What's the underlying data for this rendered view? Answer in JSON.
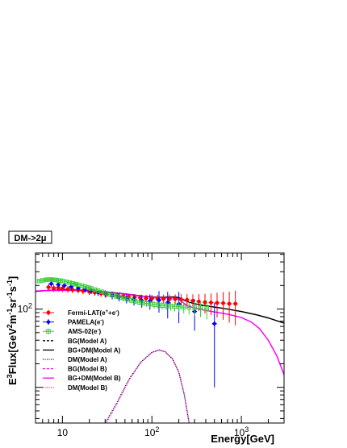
{
  "chart_data": {
    "type": "scatter",
    "title": "DM->2μ",
    "xlabel": "Energy[GeV]",
    "ylabel_parts": {
      "base": "E",
      "sup1": "3",
      "mid": "Flux[GeV",
      "sup2": "2",
      "m": "m",
      "sup3": "-1",
      "sr": "sr",
      "sup4": "-1",
      "s": "s",
      "sup5": "-1",
      "end": "]"
    },
    "x_scale": "log",
    "y_scale": "log",
    "xlim": [
      5,
      3000
    ],
    "ylim": [
      3.5,
      520
    ],
    "x_tick_labels": [
      {
        "value": 10,
        "base": "10",
        "exp": ""
      },
      {
        "value": 100,
        "base": "10",
        "exp": "2"
      },
      {
        "value": 1000,
        "base": "10",
        "exp": "3"
      }
    ],
    "y_tick_labels": [
      {
        "value": 100,
        "base": "10",
        "exp": "2"
      }
    ],
    "legend": {
      "position": "left",
      "entries": [
        {
          "text": "Fermi-LAT(e",
          "sup": "+",
          "text2": "+e",
          "sup2": "-",
          "text3": ")",
          "kind": "marker",
          "color": "#ff0000",
          "marker": "circle"
        },
        {
          "text": "PAMELA(e",
          "sup": "-",
          "text2": ")",
          "sup2": "",
          "text3": "",
          "kind": "marker",
          "color": "#0000ff",
          "marker": "diamond"
        },
        {
          "text": "AMS-02(e",
          "sup": "-",
          "text2": ")",
          "sup2": "",
          "text3": "",
          "kind": "marker",
          "color": "#33cc33",
          "marker": "square"
        },
        {
          "text": "BG(Model A)",
          "kind": "line",
          "color": "#000000",
          "dash": "3,2"
        },
        {
          "text": "BG+DM(Model A)",
          "kind": "line",
          "color": "#000000",
          "dash": ""
        },
        {
          "text": "DM(Model A)",
          "kind": "line",
          "color": "#000000",
          "dash": "1,1.5"
        },
        {
          "text": "BG(Model B)",
          "kind": "line",
          "color": "#ff00ff",
          "dash": "3,2"
        },
        {
          "text": "BG+DM(Model B)",
          "kind": "line",
          "color": "#ff00ff",
          "dash": ""
        },
        {
          "text": "DM(Model B)",
          "kind": "line",
          "color": "#ff00ff",
          "dash": "1,1.5"
        }
      ]
    },
    "series": [
      {
        "name": "Fermi-LAT(e+e)",
        "color": "#ff0000",
        "marker": "circle",
        "points": [
          [
            7,
            190,
            22
          ],
          [
            8,
            185,
            20
          ],
          [
            9,
            188,
            20
          ],
          [
            10,
            183,
            18
          ],
          [
            11.5,
            180,
            18
          ],
          [
            13,
            176,
            17
          ],
          [
            15,
            174,
            16
          ],
          [
            17,
            170,
            16
          ],
          [
            20,
            166,
            15
          ],
          [
            23,
            162,
            15
          ],
          [
            27,
            158,
            15
          ],
          [
            31,
            155,
            14
          ],
          [
            36,
            151,
            14
          ],
          [
            41,
            148,
            14
          ],
          [
            48,
            146,
            14
          ],
          [
            55,
            143,
            14
          ],
          [
            64,
            141,
            14
          ],
          [
            74,
            139,
            14
          ],
          [
            86,
            137,
            15
          ],
          [
            100,
            136,
            16
          ],
          [
            116,
            135,
            17
          ],
          [
            135,
            135,
            18
          ],
          [
            157,
            134,
            19
          ],
          [
            182,
            134,
            20
          ],
          [
            212,
            133,
            22
          ],
          [
            247,
            131,
            24
          ],
          [
            287,
            128,
            26
          ],
          [
            335,
            125,
            30
          ],
          [
            392,
            122,
            34
          ],
          [
            458,
            121,
            37
          ],
          [
            535,
            120,
            42
          ],
          [
            626,
            119,
            46
          ],
          [
            732,
            117,
            50
          ],
          [
            857,
            117,
            55
          ]
        ]
      },
      {
        "name": "PAMELA(e-)",
        "color": "#0000ff",
        "marker": "diamond",
        "points": [
          [
            7.5,
            210,
            20
          ],
          [
            9,
            205,
            20
          ],
          [
            10.5,
            200,
            18
          ],
          [
            12.5,
            192,
            17
          ],
          [
            15,
            185,
            17
          ],
          [
            18,
            178,
            16
          ],
          [
            21,
            171,
            16
          ],
          [
            25,
            163,
            16
          ],
          [
            30,
            157,
            17
          ],
          [
            36,
            150,
            17
          ],
          [
            43,
            143,
            18
          ],
          [
            52,
            137,
            19
          ],
          [
            63,
            132,
            21
          ],
          [
            77,
            128,
            24
          ],
          [
            95,
            126,
            28
          ],
          [
            120,
            130,
            40
          ],
          [
            150,
            121,
            45
          ],
          [
            200,
            116,
            50
          ],
          [
            300,
            93,
            40
          ],
          [
            500,
            65,
            55
          ]
        ]
      },
      {
        "name": "AMS-02(e-)",
        "color": "#33cc33",
        "marker": "square",
        "points": [
          [
            5.5,
            228,
            14
          ],
          [
            6,
            232,
            14
          ],
          [
            6.5,
            236,
            14
          ],
          [
            7,
            238,
            14
          ],
          [
            7.5,
            238,
            14
          ],
          [
            8,
            236,
            14
          ],
          [
            8.5,
            235,
            14
          ],
          [
            9,
            232,
            13
          ],
          [
            9.5,
            230,
            13
          ],
          [
            10,
            228,
            13
          ],
          [
            11,
            223,
            13
          ],
          [
            12,
            218,
            13
          ],
          [
            13,
            213,
            12
          ],
          [
            14,
            208,
            12
          ],
          [
            15,
            204,
            12
          ],
          [
            16.5,
            199,
            12
          ],
          [
            18,
            193,
            11
          ],
          [
            19.5,
            188,
            11
          ],
          [
            21,
            183,
            11
          ],
          [
            23,
            177,
            11
          ],
          [
            25,
            172,
            10
          ],
          [
            27.5,
            166,
            10
          ],
          [
            30,
            160,
            10
          ],
          [
            33,
            155,
            10
          ],
          [
            36,
            150,
            10
          ],
          [
            40,
            145,
            10
          ],
          [
            44,
            141,
            10
          ],
          [
            48.5,
            137,
            10
          ],
          [
            53.5,
            133,
            10
          ],
          [
            59,
            129,
            10
          ],
          [
            65,
            126,
            10
          ],
          [
            72,
            122,
            10
          ],
          [
            79,
            120,
            10
          ],
          [
            87,
            118,
            11
          ],
          [
            96,
            116,
            11
          ],
          [
            106,
            114,
            12
          ],
          [
            117,
            113,
            12
          ],
          [
            130,
            111,
            13
          ],
          [
            145,
            110,
            13
          ],
          [
            162,
            109,
            14
          ],
          [
            180,
            108,
            15
          ],
          [
            200,
            107,
            16
          ],
          [
            227,
            106,
            18
          ],
          [
            260,
            105,
            20
          ],
          [
            300,
            104,
            22
          ],
          [
            350,
            103,
            24
          ],
          [
            410,
            102,
            28
          ]
        ]
      }
    ],
    "curves": [
      {
        "name": "BG+DM(Model A)",
        "color": "#000000",
        "dash": "",
        "x": [
          5,
          7,
          10,
          15,
          20,
          30,
          50,
          80,
          120,
          150,
          180,
          200,
          220,
          250,
          300,
          400,
          500,
          700,
          1000,
          1500,
          2000,
          3000
        ],
        "y": [
          168,
          173,
          176,
          175,
          172,
          166,
          156,
          146,
          141,
          142,
          143,
          140,
          133,
          124,
          117,
          110,
          106,
          100,
          93,
          84,
          77,
          66
        ]
      },
      {
        "name": "BG+DM(Model B)",
        "color": "#ff00ff",
        "dash": "",
        "x": [
          5,
          7,
          10,
          15,
          20,
          30,
          50,
          80,
          120,
          150,
          180,
          200,
          220,
          250,
          300,
          400,
          500,
          700,
          1000,
          1300,
          1600,
          2000,
          2500,
          3000
        ],
        "y": [
          170,
          172,
          173,
          172,
          170,
          164,
          155,
          145,
          139,
          139,
          139,
          134,
          122,
          110,
          103,
          96,
          92,
          86,
          78,
          68,
          56,
          40,
          25,
          14.5
        ]
      },
      {
        "name": "DM(Model A)",
        "color": "#000000",
        "dash": "1,1.5",
        "x": [
          30,
          40,
          55,
          75,
          100,
          120,
          140,
          170,
          200,
          230,
          260
        ],
        "y": [
          3.5,
          6.2,
          12.5,
          21,
          28,
          30,
          28.5,
          23,
          15.5,
          8,
          3.5
        ]
      },
      {
        "name": "DM(Model B)",
        "color": "#ff00ff",
        "dash": "1,1.5",
        "x": [
          31,
          41,
          56,
          76,
          101,
          121,
          141,
          171,
          201,
          231,
          262
        ],
        "y": [
          3.5,
          6.2,
          12.5,
          21,
          28,
          30,
          28.5,
          23,
          15.5,
          8,
          3.5
        ]
      }
    ]
  }
}
